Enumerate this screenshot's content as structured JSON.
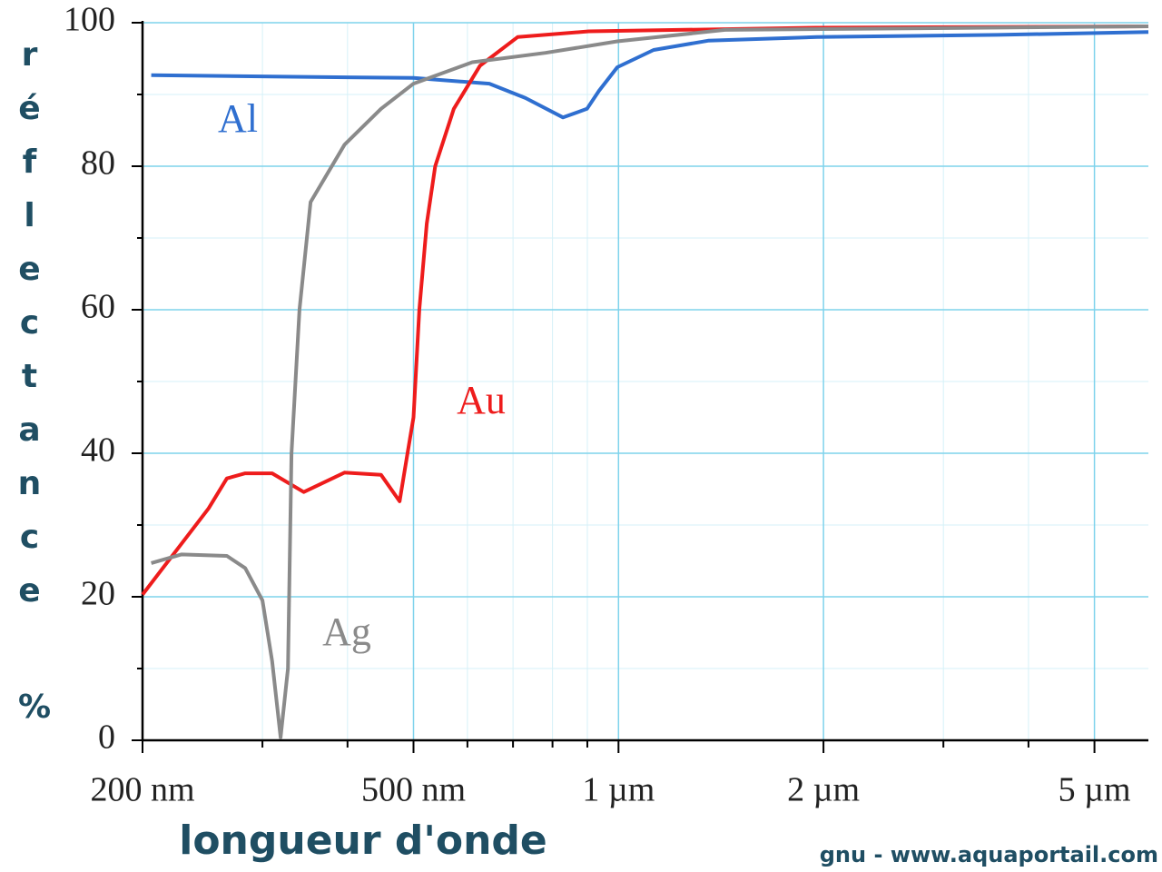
{
  "chart_data": {
    "type": "line",
    "y_label": "réflectance",
    "y_unit": "%",
    "x_label": "longueur d'onde",
    "credit": "gnu - www.aquaportail.com",
    "log_x": true,
    "grid": true,
    "xlim": [
      200,
      6000
    ],
    "xticks": [
      {
        "value": 200,
        "label": "200 nm"
      },
      {
        "value": 500,
        "label": "500 nm"
      },
      {
        "value": 1000,
        "label": "1 µm"
      },
      {
        "value": 2000,
        "label": "2 µm"
      },
      {
        "value": 5000,
        "label": "5 µm"
      }
    ],
    "xminorticks": [
      300,
      400,
      600,
      700,
      800,
      900,
      3000,
      4000
    ],
    "ylim": [
      0,
      100
    ],
    "yticks": [
      0,
      20,
      40,
      60,
      80,
      100
    ],
    "yminorticks": [
      10,
      30,
      50,
      70,
      90
    ],
    "series": [
      {
        "name": "Al",
        "color": "#2f6fd0",
        "x": [
          206,
          310,
          500,
          646,
          730,
          829,
          899,
          936,
          996,
          1126,
          1354,
          1955,
          3600,
          6000
        ],
        "values": [
          92.7,
          92.5,
          92.3,
          91.5,
          89.5,
          86.8,
          88,
          90.5,
          93.8,
          96.2,
          97.5,
          98,
          98.3,
          98.7
        ]
      },
      {
        "name": "Au",
        "color": "#ee1c1c",
        "x": [
          200,
          250,
          266,
          283,
          310,
          345,
          396,
          448,
          477,
          490,
          500,
          510,
          523,
          538,
          573,
          626,
          711,
          904,
          1955,
          6000
        ],
        "values": [
          20.3,
          32.3,
          36.5,
          37.2,
          37.2,
          34.6,
          37.3,
          37,
          33.3,
          40,
          45,
          60,
          72,
          80,
          88,
          94,
          98,
          98.8,
          99.3,
          99.5
        ]
      },
      {
        "name": "Ag",
        "color": "#8a8a8a",
        "x": [
          206,
          228,
          266,
          283,
          300,
          310,
          319,
          327,
          331,
          340,
          353,
          396,
          448,
          500,
          610,
          781,
          996,
          1434,
          6000
        ],
        "values": [
          24.7,
          25.9,
          25.7,
          24,
          19.5,
          11,
          0.4,
          10,
          40,
          60,
          75,
          83,
          88,
          91.5,
          94.5,
          95.8,
          97.4,
          99,
          99.5
        ]
      }
    ]
  }
}
